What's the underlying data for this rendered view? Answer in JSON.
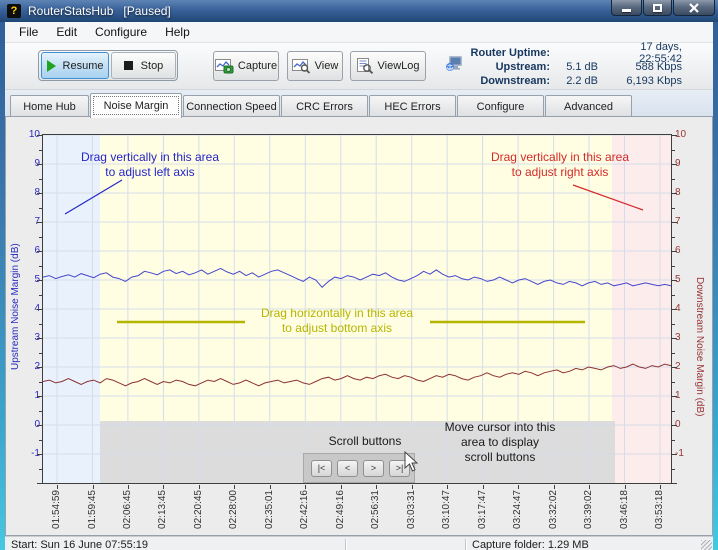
{
  "window": {
    "title": "RouterStatsHub",
    "state": "[Paused]",
    "icon_glyph": "?"
  },
  "menu": {
    "items": [
      {
        "label": "File"
      },
      {
        "label": "Edit"
      },
      {
        "label": "Configure"
      },
      {
        "label": "Help"
      }
    ]
  },
  "toolbar": {
    "resume_label": "Resume",
    "stop_label": "Stop",
    "capture_label": "Capture",
    "view_label": "View",
    "viewlog_label": "ViewLog"
  },
  "status_info": {
    "uptime_label": "Router Uptime:",
    "uptime_value": "17 days, 22:55:42",
    "upstream_label": "Upstream:",
    "upstream_db": "5.1 dB",
    "upstream_rate": "588 Kbps",
    "downstream_label": "Downstream:",
    "downstream_db": "2.2 dB",
    "downstream_rate": "6,193 Kbps"
  },
  "tabs": {
    "active": "Noise Margin",
    "items": [
      "Home Hub",
      "Noise Margin",
      "Connection Speed",
      "CRC Errors",
      "HEC Errors",
      "Configure",
      "Advanced"
    ]
  },
  "chart_data": {
    "type": "line",
    "x_tick_labels": [
      "01:54:59",
      "01:59:45",
      "02:06:45",
      "02:13:45",
      "02:20:45",
      "02:28:00",
      "02:35:01",
      "02:42:16",
      "02:49:16",
      "02:56:31",
      "03:03:31",
      "03:10:47",
      "03:17:47",
      "03:24:47",
      "03:32:02",
      "03:39:02",
      "03:46:18",
      "03:53:18"
    ],
    "left_axis": {
      "title": "Upstream Noise Margin (dB)",
      "tick_min": -1,
      "tick_max": 10,
      "color": "#2a2ac0"
    },
    "right_axis": {
      "title": "Downstream Noise Margin (dB)",
      "tick_min": -1,
      "tick_max": 10,
      "color": "#993333"
    },
    "grid": true,
    "series": [
      {
        "name": "Upstream Noise Margin",
        "axis": "left",
        "color": "#4747cb",
        "values": [
          5.1,
          5.15,
          5.05,
          5.12,
          5.18,
          5.1,
          5.22,
          5.15,
          5.08,
          5.2,
          5.25,
          5.1,
          5.05,
          4.95,
          5.1,
          5.15,
          5.3,
          5.25,
          5.18,
          5.3,
          5.35,
          5.22,
          5.3,
          5.18,
          5.25,
          5.35,
          5.2,
          5.3,
          5.4,
          5.28,
          5.2,
          5.3,
          5.15,
          5.25,
          5.1,
          5.2,
          5.3,
          5.35,
          5.25,
          5.15,
          5.05,
          4.95,
          5.1,
          5.0,
          4.75,
          4.95,
          5.1,
          5.05,
          5.15,
          5.1,
          5.0,
          5.1,
          5.2,
          5.15,
          5.25,
          5.1,
          5.0,
          4.95,
          5.05,
          5.15,
          5.3,
          5.2,
          5.35,
          5.2,
          5.1,
          5.15,
          5.05,
          5.0,
          5.1,
          5.05,
          4.95,
          5.0,
          5.1,
          5.0,
          4.9,
          5.0,
          5.05,
          4.95,
          4.85,
          4.95,
          5.0,
          4.9,
          4.85,
          4.95,
          4.9,
          4.8,
          4.9,
          4.95,
          4.85,
          4.9,
          4.8,
          4.85,
          4.9,
          4.8,
          4.85,
          4.9,
          4.85,
          4.8,
          4.85,
          4.8
        ]
      },
      {
        "name": "Downstream Noise Margin",
        "axis": "right",
        "color": "#8b3232",
        "values": [
          1.5,
          1.55,
          1.45,
          1.5,
          1.6,
          1.5,
          1.4,
          1.5,
          1.55,
          1.45,
          1.6,
          1.55,
          1.45,
          1.35,
          1.45,
          1.5,
          1.6,
          1.5,
          1.4,
          1.5,
          1.45,
          1.55,
          1.5,
          1.4,
          1.35,
          1.45,
          1.55,
          1.5,
          1.6,
          1.5,
          1.4,
          1.45,
          1.55,
          1.45,
          1.35,
          1.45,
          1.5,
          1.55,
          1.45,
          1.5,
          1.55,
          1.45,
          1.4,
          1.5,
          1.6,
          1.65,
          1.55,
          1.6,
          1.7,
          1.6,
          1.55,
          1.65,
          1.6,
          1.7,
          1.75,
          1.65,
          1.6,
          1.7,
          1.65,
          1.55,
          1.5,
          1.6,
          1.7,
          1.65,
          1.75,
          1.7,
          1.6,
          1.55,
          1.65,
          1.7,
          1.8,
          1.7,
          1.65,
          1.75,
          1.8,
          1.75,
          1.85,
          1.8,
          1.7,
          1.8,
          1.85,
          1.9,
          1.8,
          1.85,
          1.95,
          1.9,
          2.0,
          1.95,
          1.9,
          2.0,
          2.05,
          1.95,
          2.0,
          2.1,
          2.0,
          1.95,
          2.05,
          2.0,
          2.1,
          2.05
        ]
      }
    ],
    "zone_colors": {
      "left_drag": "#e9f2fc",
      "main": "#fffee3",
      "right_drag": "#fcecec",
      "scroll_area": "#dcdcdc"
    },
    "grid_color": "#d5dde9"
  },
  "overlays": {
    "left_axis_note_1": "Drag vertically in this area",
    "left_axis_note_2": "to adjust left axis",
    "right_axis_note_1": "Drag vertically in this area",
    "right_axis_note_2": "to adjust right axis",
    "bottom_axis_note_1": "Drag horizontally in this area",
    "bottom_axis_note_2": "to adjust bottom axis",
    "scroll_label": "Scroll buttons",
    "move_hint_1": "Move cursor into this",
    "move_hint_2": "area to display",
    "move_hint_3": "scroll buttons",
    "scroll_buttons": [
      "|<",
      "<",
      ">",
      ">|"
    ]
  },
  "statusbar": {
    "start_text": "Start: Sun 16 June 07:55:19",
    "capture_text": "Capture folder: 1.29 MB"
  }
}
